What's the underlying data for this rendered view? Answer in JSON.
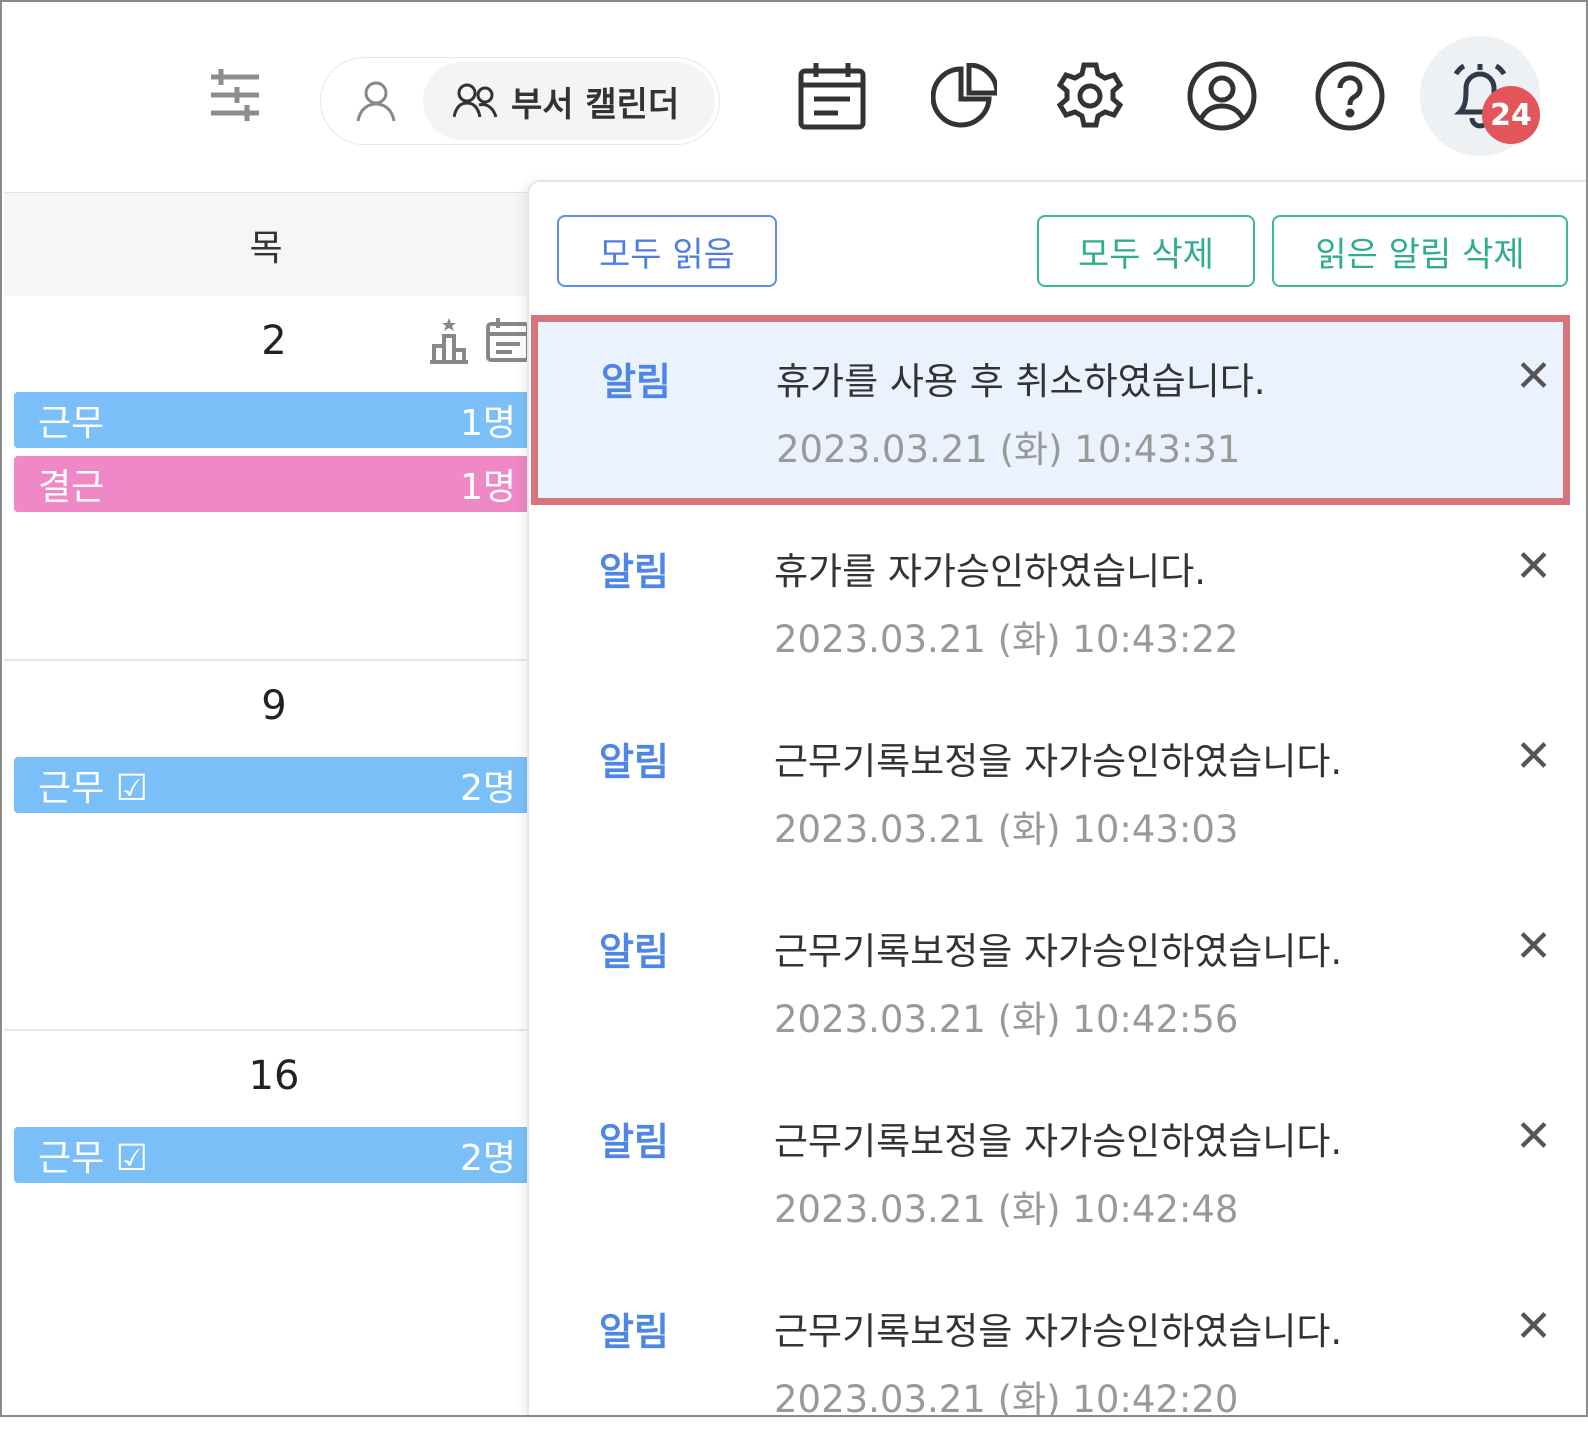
{
  "header": {
    "toggle_label": "부서 캘린더",
    "notification_count": "24",
    "icons": [
      "sliders-icon",
      "user-icon",
      "users-icon",
      "calendar-icon",
      "pie-chart-icon",
      "gear-icon",
      "account-icon",
      "help-icon",
      "bell-icon"
    ]
  },
  "calendar": {
    "weekday": "목",
    "weeks": [
      {
        "day": "2",
        "events": [
          {
            "label": "근무",
            "count": "1명",
            "color": "#7bbff9"
          },
          {
            "label": "결근",
            "count": "1명",
            "color": "#ef88c6"
          }
        ]
      },
      {
        "day": "9",
        "events": [
          {
            "label": "근무",
            "count": "2명",
            "color": "#7bbff9"
          }
        ]
      },
      {
        "day": "16",
        "events": [
          {
            "label": "근무",
            "count": "2명",
            "color": "#7bbff9"
          }
        ]
      }
    ]
  },
  "panel": {
    "read_all": "모두 읽음",
    "delete_all": "모두 삭제",
    "delete_read": "읽은 알림 삭제",
    "items": [
      {
        "tag": "알림",
        "message": "휴가를 사용 후 취소하였습니다.",
        "time": "2023.03.21 (화) 10:43:31"
      },
      {
        "tag": "알림",
        "message": "휴가를 자가승인하였습니다.",
        "time": "2023.03.21 (화) 10:43:22"
      },
      {
        "tag": "알림",
        "message": "근무기록보정을 자가승인하였습니다.",
        "time": "2023.03.21 (화) 10:43:03"
      },
      {
        "tag": "알림",
        "message": "근무기록보정을 자가승인하였습니다.",
        "time": "2023.03.21 (화) 10:42:56"
      },
      {
        "tag": "알림",
        "message": "근무기록보정을 자가승인하였습니다.",
        "time": "2023.03.21 (화) 10:42:48"
      },
      {
        "tag": "알림",
        "message": "근무기록보정을 자가승인하였습니다.",
        "time": "2023.03.21 (화) 10:42:20"
      }
    ]
  },
  "colors": {
    "accent": "#4d86e6",
    "highlight_border": "#d7737a",
    "badge": "#e2555a"
  }
}
